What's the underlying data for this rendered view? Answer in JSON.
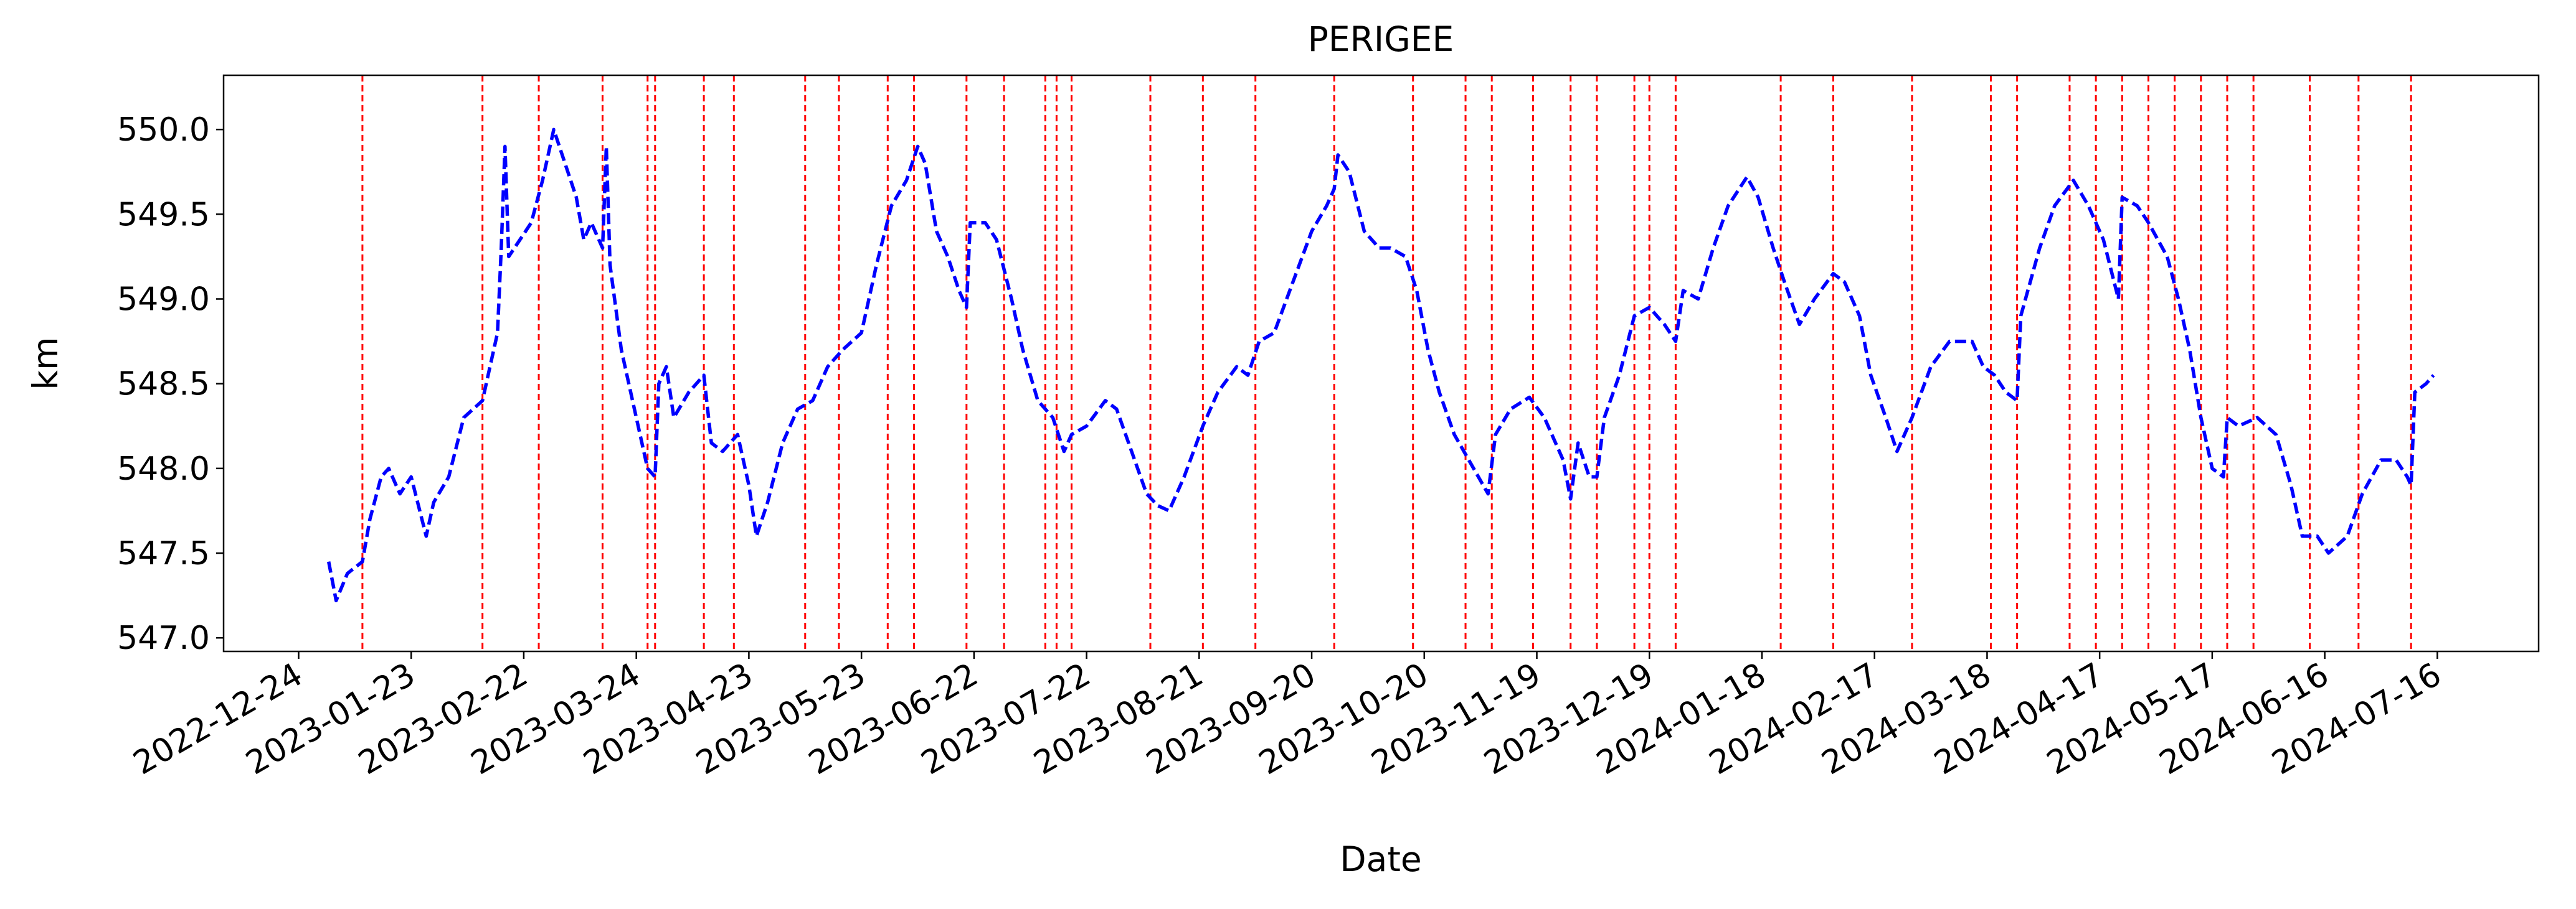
{
  "chart_data": {
    "type": "line",
    "title": "PERIGEE",
    "xlabel": "Date",
    "ylabel": "km",
    "color": "#0000ff",
    "vline_color": "#ff0000",
    "xlim": [
      "2022-12-04",
      "2024-08-12"
    ],
    "xticks": [
      "2022-12-24",
      "2023-01-23",
      "2023-02-22",
      "2023-03-24",
      "2023-04-23",
      "2023-05-23",
      "2023-06-22",
      "2023-07-22",
      "2023-08-21",
      "2023-09-20",
      "2023-10-20",
      "2023-11-19",
      "2023-12-19",
      "2024-01-18",
      "2024-02-17",
      "2024-03-18",
      "2024-04-17",
      "2024-05-17",
      "2024-06-16",
      "2024-07-16"
    ],
    "ylim": [
      546.92,
      550.32
    ],
    "yticks": [
      {
        "value": 547,
        "label": "547.0"
      },
      547.5,
      {
        "value": 548,
        "label": "548.0"
      },
      548.5,
      {
        "value": 549,
        "label": "549.0"
      },
      549.5,
      {
        "value": 550,
        "label": "550.0"
      }
    ],
    "x": [
      "2023-01-01",
      "2023-01-03",
      "2023-01-06",
      "2023-01-10",
      "2023-01-12",
      "2023-01-15",
      "2023-01-17",
      "2023-01-20",
      "2023-01-23",
      "2023-01-27",
      "2023-01-29",
      "2023-02-02",
      "2023-02-06",
      "2023-02-11",
      "2023-02-13",
      "2023-02-15",
      "2023-02-16",
      "2023-02-17",
      "2023-02-18",
      "2023-02-21",
      "2023-02-24",
      "2023-02-27",
      "2023-03-02",
      "2023-03-05",
      "2023-03-08",
      "2023-03-10",
      "2023-03-12",
      "2023-03-15",
      "2023-03-16",
      "2023-03-17",
      "2023-03-20",
      "2023-03-23",
      "2023-03-27",
      "2023-03-29",
      "2023-03-30",
      "2023-04-01",
      "2023-04-03",
      "2023-04-07",
      "2023-04-11",
      "2023-04-13",
      "2023-04-16",
      "2023-04-20",
      "2023-04-23",
      "2023-04-25",
      "2023-04-28",
      "2023-05-02",
      "2023-05-06",
      "2023-05-10",
      "2023-05-14",
      "2023-05-18",
      "2023-05-23",
      "2023-05-27",
      "2023-05-31",
      "2023-06-04",
      "2023-06-07",
      "2023-06-09",
      "2023-06-12",
      "2023-06-15",
      "2023-06-18",
      "2023-06-20",
      "2023-06-21",
      "2023-06-25",
      "2023-06-28",
      "2023-07-02",
      "2023-07-05",
      "2023-07-09",
      "2023-07-13",
      "2023-07-16",
      "2023-07-18",
      "2023-07-22",
      "2023-07-27",
      "2023-07-30",
      "2023-08-03",
      "2023-08-07",
      "2023-08-10",
      "2023-08-13",
      "2023-08-17",
      "2023-08-22",
      "2023-08-26",
      "2023-08-31",
      "2023-09-03",
      "2023-09-06",
      "2023-09-10",
      "2023-09-15",
      "2023-09-20",
      "2023-09-24",
      "2023-09-26",
      "2023-09-27",
      "2023-09-30",
      "2023-10-04",
      "2023-10-08",
      "2023-10-11",
      "2023-10-15",
      "2023-10-18",
      "2023-10-21",
      "2023-10-24",
      "2023-10-28",
      "2023-11-06",
      "2023-11-08",
      "2023-11-12",
      "2023-11-17",
      "2023-11-21",
      "2023-11-26",
      "2023-11-28",
      "2023-11-30",
      "2023-12-03",
      "2023-12-05",
      "2023-12-07",
      "2023-12-11",
      "2023-12-15",
      "2023-12-19",
      "2023-12-23",
      "2023-12-26",
      "2023-12-28",
      "2024-01-01",
      "2024-01-05",
      "2024-01-09",
      "2024-01-14",
      "2024-01-17",
      "2024-01-21",
      "2024-01-24",
      "2024-01-28",
      "2024-02-01",
      "2024-02-06",
      "2024-02-09",
      "2024-02-13",
      "2024-02-16",
      "2024-02-20",
      "2024-02-23",
      "2024-02-27",
      "2024-03-03",
      "2024-03-08",
      "2024-03-14",
      "2024-03-17",
      "2024-03-20",
      "2024-03-23",
      "2024-03-26",
      "2024-03-27",
      "2024-04-01",
      "2024-04-05",
      "2024-04-10",
      "2024-04-14",
      "2024-04-18",
      "2024-04-22",
      "2024-04-23",
      "2024-04-27",
      "2024-04-30",
      "2024-05-05",
      "2024-05-08",
      "2024-05-11",
      "2024-05-14",
      "2024-05-17",
      "2024-05-20",
      "2024-05-21",
      "2024-05-24",
      "2024-05-29",
      "2024-06-03",
      "2024-06-07",
      "2024-06-10",
      "2024-06-14",
      "2024-06-17",
      "2024-06-22",
      "2024-06-26",
      "2024-07-01",
      "2024-07-05",
      "2024-07-08",
      "2024-07-09",
      "2024-07-10",
      "2024-07-13",
      "2024-07-15"
    ],
    "values": [
      547.45,
      547.22,
      547.38,
      547.45,
      547.7,
      547.95,
      548.0,
      547.85,
      547.95,
      547.6,
      547.8,
      547.95,
      548.3,
      548.4,
      548.6,
      548.8,
      549.3,
      549.9,
      549.25,
      549.35,
      549.45,
      549.7,
      550.0,
      549.8,
      549.6,
      549.35,
      549.45,
      549.3,
      549.9,
      549.2,
      548.7,
      548.4,
      548.0,
      547.95,
      548.5,
      548.6,
      548.3,
      548.45,
      548.55,
      548.15,
      548.1,
      548.2,
      547.9,
      547.6,
      547.8,
      548.15,
      548.35,
      548.4,
      548.6,
      548.7,
      548.8,
      549.2,
      549.55,
      549.7,
      549.9,
      549.8,
      549.4,
      549.25,
      549.05,
      548.95,
      549.45,
      549.45,
      549.35,
      549.0,
      548.7,
      548.4,
      548.3,
      548.1,
      548.2,
      548.25,
      548.4,
      548.35,
      548.1,
      547.85,
      547.78,
      547.75,
      547.95,
      548.25,
      548.45,
      548.6,
      548.55,
      548.75,
      548.8,
      549.1,
      549.4,
      549.55,
      549.65,
      549.85,
      549.75,
      549.4,
      549.3,
      549.3,
      549.25,
      549.05,
      548.7,
      548.45,
      548.2,
      547.85,
      548.2,
      548.35,
      548.42,
      548.3,
      548.05,
      547.82,
      548.15,
      547.95,
      547.95,
      548.3,
      548.55,
      548.9,
      548.95,
      548.85,
      548.75,
      549.05,
      549.0,
      549.3,
      549.55,
      549.72,
      549.6,
      549.3,
      549.1,
      548.85,
      549.0,
      549.15,
      549.1,
      548.9,
      548.55,
      548.3,
      548.1,
      548.3,
      548.6,
      548.75,
      548.75,
      548.6,
      548.55,
      548.45,
      548.4,
      548.9,
      549.3,
      549.55,
      549.7,
      549.55,
      549.35,
      549.0,
      549.6,
      549.55,
      549.45,
      549.25,
      549.0,
      548.7,
      548.3,
      548.0,
      547.95,
      548.3,
      548.25,
      548.3,
      548.2,
      547.9,
      547.6,
      547.6,
      547.5,
      547.6,
      547.85,
      548.05,
      548.05,
      547.95,
      547.9,
      548.45,
      548.5,
      548.55
    ],
    "vlines": [
      "2023-01-10",
      "2023-02-11",
      "2023-02-26",
      "2023-03-15",
      "2023-03-27",
      "2023-03-29",
      "2023-04-11",
      "2023-04-19",
      "2023-05-08",
      "2023-05-17",
      "2023-05-30",
      "2023-06-06",
      "2023-06-20",
      "2023-06-30",
      "2023-07-11",
      "2023-07-14",
      "2023-07-18",
      "2023-08-08",
      "2023-08-22",
      "2023-09-05",
      "2023-09-26",
      "2023-10-17",
      "2023-10-31",
      "2023-11-07",
      "2023-11-18",
      "2023-11-28",
      "2023-12-05",
      "2023-12-15",
      "2023-12-19",
      "2023-12-26",
      "2024-01-23",
      "2024-02-06",
      "2024-02-27",
      "2024-03-19",
      "2024-03-26",
      "2024-04-09",
      "2024-04-16",
      "2024-04-23",
      "2024-04-30",
      "2024-05-07",
      "2024-05-14",
      "2024-05-21",
      "2024-05-28",
      "2024-06-12",
      "2024-06-25",
      "2024-07-09"
    ]
  }
}
